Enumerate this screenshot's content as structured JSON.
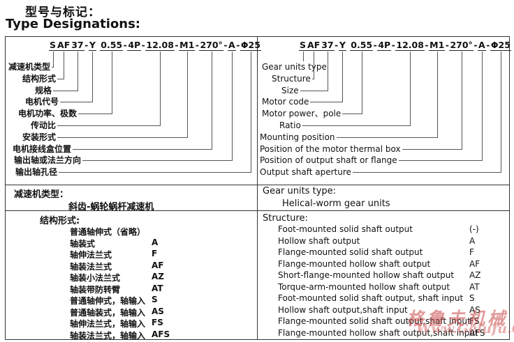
{
  "page": {
    "title_zh": "型号与标记：",
    "title_en": "Type Designations:"
  },
  "designation_code": {
    "full": "SAF37-Y 0.55-4P-12.08-M1-270°-A-Φ25",
    "segments": [
      "S",
      "AF",
      "37",
      "Y",
      "0.55",
      "4P",
      "12.08",
      "M1",
      "270°",
      "A",
      "Φ25"
    ],
    "separators": [
      "",
      "",
      "-",
      " ",
      "-",
      "-",
      "-",
      "-",
      "-",
      "-"
    ]
  },
  "diagram": {
    "left_labels": [
      "减速机类型",
      "结构形式",
      "规格",
      "电机代号",
      "电机功率、极数",
      "传动比",
      "安装形式",
      "电机接线盒位置",
      "输出轴或法兰方向",
      "输出轴孔径"
    ],
    "right_labels": [
      "Gear units type",
      "Structure",
      "Size",
      "Motor code",
      "Motor power、pole",
      "Ratio",
      "Mounting position",
      "Position of the motor thermal box",
      "Position of output shaft or flange",
      "Output shaft aperture"
    ],
    "label_target_segment": [
      0,
      1,
      2,
      3,
      4,
      6,
      7,
      8,
      9,
      10
    ]
  },
  "gear_type": {
    "zh_heading": "减速机类型：",
    "zh_value": "斜齿-蜗轮蜗杆减速机",
    "en_heading": "Gear units type:",
    "en_value": "Helical-worm gear units"
  },
  "structure": {
    "zh_heading": "结构形式:",
    "en_heading": "Structure:",
    "rows": [
      {
        "zh_name": "普通轴伸式（省略）",
        "zh_code": "",
        "en_name": "Foot-mounted solid shaft output",
        "en_code": "(-)"
      },
      {
        "zh_name": "轴装式",
        "zh_code": "A",
        "en_name": "Hollow shaft output",
        "en_code": "A"
      },
      {
        "zh_name": "轴伸法兰式",
        "zh_code": "F",
        "en_name": "Flange-mounted solid shaft output",
        "en_code": "F"
      },
      {
        "zh_name": "轴装法兰式",
        "zh_code": "AF",
        "en_name": "Flange-mounted hollow shaft output",
        "en_code": "AF"
      },
      {
        "zh_name": "轴装小法兰式",
        "zh_code": "AZ",
        "en_name": "Short-flange-mounted hollow shaft output",
        "en_code": "AZ"
      },
      {
        "zh_name": "轴装带防转臂",
        "zh_code": "AT",
        "en_name": "Torque-arm-mounted hollow shaft output",
        "en_code": "AT"
      },
      {
        "zh_name": "普通轴伸式，轴输入",
        "zh_code": "S",
        "en_name": "Foot-mounted solid shaft output, shaft input",
        "en_code": "S"
      },
      {
        "zh_name": "普通轴装式，轴输入",
        "zh_code": "AS",
        "en_name": "Hollow shaft output,shaft input",
        "en_code": "AS"
      },
      {
        "zh_name": "轴伸法兰式，轴输入",
        "zh_code": "FS",
        "en_name": "Flange-mounted solid shaft output,shaft input",
        "en_code": "FS"
      },
      {
        "zh_name": "轴装法兰式，轴输入",
        "zh_code": "AFS",
        "en_name": "Flange-mounted hollow shaft output,shaft input",
        "en_code": "AFS"
      }
    ]
  },
  "watermark": {
    "line1": "格鲁夫机械",
    "line2": "Www.Gelufu.Com",
    "color": "#c84646"
  }
}
